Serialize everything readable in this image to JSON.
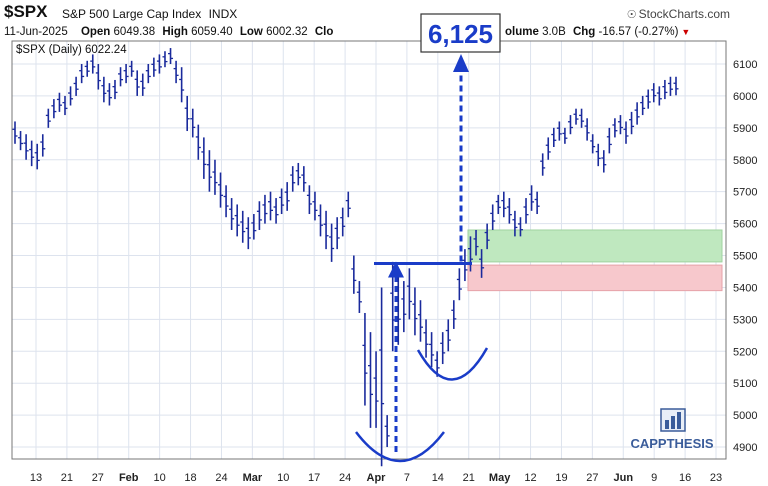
{
  "header": {
    "symbol": "$SPX",
    "name": "S&P 500 Large Cap Index",
    "exchange": "INDX",
    "brand": "StockCharts.com",
    "brand_icon": "copyright-icon",
    "date": "11-Jun-2025",
    "open_label": "Open",
    "open": "6049.38",
    "high_label": "High",
    "high": "6059.40",
    "low_label": "Low",
    "low": "6002.32",
    "close_label": "Clo",
    "volume_label": "olume",
    "volume": "3.0B",
    "chg_label": "Chg",
    "chg": "-16.57 (-0.27%)"
  },
  "chart_data": {
    "type": "ohlc",
    "legend": "$SPX (Daily) 6022.24",
    "ylim": [
      4800,
      6150
    ],
    "y_ticks": [
      4900,
      5000,
      5100,
      5200,
      5300,
      5400,
      5500,
      5600,
      5700,
      5800,
      5900,
      6000,
      6100
    ],
    "x_ticks": [
      {
        "label": "13",
        "month": false
      },
      {
        "label": "21",
        "month": false
      },
      {
        "label": "27",
        "month": false
      },
      {
        "label": "Feb",
        "month": true
      },
      {
        "label": "10",
        "month": false
      },
      {
        "label": "18",
        "month": false
      },
      {
        "label": "24",
        "month": false
      },
      {
        "label": "Mar",
        "month": true
      },
      {
        "label": "10",
        "month": false
      },
      {
        "label": "17",
        "month": false
      },
      {
        "label": "24",
        "month": false
      },
      {
        "label": "Apr",
        "month": true
      },
      {
        "label": "7",
        "month": false
      },
      {
        "label": "14",
        "month": false
      },
      {
        "label": "21",
        "month": false
      },
      {
        "label": "May",
        "month": true
      },
      {
        "label": "12",
        "month": false
      },
      {
        "label": "19",
        "month": false
      },
      {
        "label": "27",
        "month": false
      },
      {
        "label": "Jun",
        "month": true
      },
      {
        "label": "9",
        "month": false
      },
      {
        "label": "16",
        "month": false
      },
      {
        "label": "23",
        "month": false
      }
    ],
    "bars": [
      [
        5920,
        5850
      ],
      [
        5890,
        5830
      ],
      [
        5880,
        5800
      ],
      [
        5860,
        5780
      ],
      [
        5850,
        5770
      ],
      [
        5880,
        5810
      ],
      [
        5960,
        5900
      ],
      [
        5990,
        5930
      ],
      [
        6010,
        5950
      ],
      [
        6000,
        5940
      ],
      [
        6030,
        5970
      ],
      [
        6060,
        6000
      ],
      [
        6100,
        6040
      ],
      [
        6110,
        6060
      ],
      [
        6130,
        6070
      ],
      [
        6100,
        6020
      ],
      [
        6060,
        5980
      ],
      [
        6040,
        5970
      ],
      [
        6050,
        5990
      ],
      [
        6090,
        6030
      ],
      [
        6100,
        6040
      ],
      [
        6110,
        6060
      ],
      [
        6080,
        6000
      ],
      [
        6070,
        6000
      ],
      [
        6100,
        6040
      ],
      [
        6120,
        6060
      ],
      [
        6130,
        6070
      ],
      [
        6140,
        6090
      ],
      [
        6150,
        6100
      ],
      [
        6110,
        6040
      ],
      [
        6090,
        5980
      ],
      [
        6000,
        5890
      ],
      [
        5960,
        5870
      ],
      [
        5910,
        5800
      ],
      [
        5870,
        5740
      ],
      [
        5830,
        5700
      ],
      [
        5800,
        5690
      ],
      [
        5760,
        5650
      ],
      [
        5720,
        5620
      ],
      [
        5680,
        5580
      ],
      [
        5660,
        5560
      ],
      [
        5640,
        5540
      ],
      [
        5620,
        5520
      ],
      [
        5630,
        5550
      ],
      [
        5670,
        5580
      ],
      [
        5690,
        5600
      ],
      [
        5700,
        5610
      ],
      [
        5680,
        5600
      ],
      [
        5710,
        5630
      ],
      [
        5730,
        5640
      ],
      [
        5780,
        5700
      ],
      [
        5790,
        5720
      ],
      [
        5780,
        5700
      ],
      [
        5720,
        5630
      ],
      [
        5700,
        5610
      ],
      [
        5660,
        5560
      ],
      [
        5640,
        5520
      ],
      [
        5600,
        5480
      ],
      [
        5620,
        5520
      ],
      [
        5650,
        5560
      ],
      [
        5700,
        5620
      ],
      [
        5500,
        5380
      ],
      [
        5420,
        5320
      ],
      [
        5320,
        5030
      ],
      [
        5260,
        4960
      ],
      [
        5200,
        4960
      ],
      [
        5400,
        4840
      ],
      [
        5000,
        4900
      ],
      [
        5480,
        5200
      ],
      [
        5450,
        5220
      ],
      [
        5420,
        5260
      ],
      [
        5460,
        5300
      ],
      [
        5400,
        5250
      ],
      [
        5360,
        5230
      ],
      [
        5300,
        5180
      ],
      [
        5260,
        5150
      ],
      [
        5200,
        5120
      ],
      [
        5260,
        5160
      ],
      [
        5300,
        5200
      ],
      [
        5360,
        5270
      ],
      [
        5460,
        5360
      ],
      [
        5520,
        5420
      ],
      [
        5560,
        5450
      ],
      [
        5580,
        5500
      ],
      [
        5520,
        5430
      ],
      [
        5600,
        5520
      ],
      [
        5660,
        5580
      ],
      [
        5690,
        5630
      ],
      [
        5700,
        5620
      ],
      [
        5680,
        5600
      ],
      [
        5640,
        5560
      ],
      [
        5620,
        5560
      ],
      [
        5680,
        5600
      ],
      [
        5720,
        5640
      ],
      [
        5700,
        5630
      ],
      [
        5820,
        5750
      ],
      [
        5870,
        5800
      ],
      [
        5900,
        5840
      ],
      [
        5920,
        5860
      ],
      [
        5900,
        5850
      ],
      [
        5940,
        5880
      ],
      [
        5960,
        5910
      ],
      [
        5960,
        5900
      ],
      [
        5930,
        5860
      ],
      [
        5880,
        5820
      ],
      [
        5850,
        5780
      ],
      [
        5830,
        5760
      ],
      [
        5900,
        5820
      ],
      [
        5930,
        5870
      ],
      [
        5940,
        5880
      ],
      [
        5920,
        5850
      ],
      [
        5950,
        5880
      ],
      [
        5980,
        5910
      ],
      [
        6000,
        5940
      ],
      [
        6020,
        5960
      ],
      [
        6040,
        5980
      ],
      [
        6030,
        5970
      ],
      [
        6050,
        5990
      ],
      [
        6060,
        6000
      ],
      [
        6060,
        6002
      ]
    ],
    "annotations": {
      "target_label": "6,125",
      "neckline": 5475,
      "green_zone": [
        5480,
        5580
      ],
      "red_zone": [
        5390,
        5470
      ],
      "watermark": "CAPPTHESIS"
    },
    "colors": {
      "bars": "#1a2a9c",
      "annotation": "#1a3cc8",
      "green_zone": "#bfe8bf",
      "red_zone": "#f7c8cc",
      "grid": "#dde3ee",
      "axis": "#777777",
      "down_arrow": "#c00000"
    }
  }
}
